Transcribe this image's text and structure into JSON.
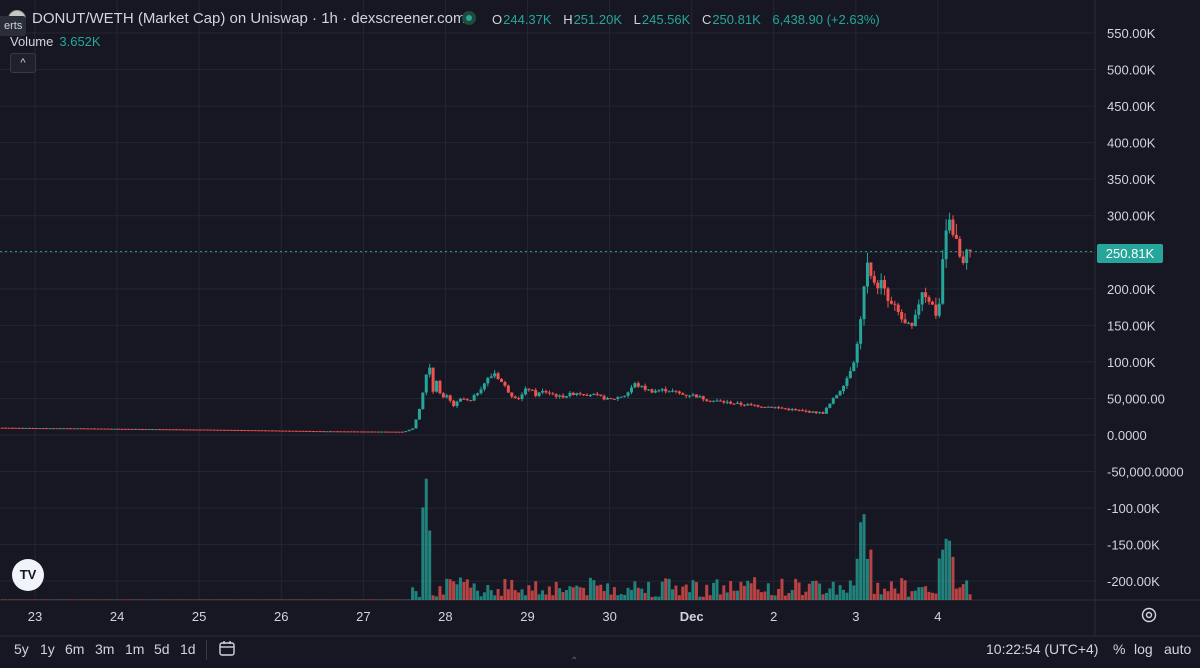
{
  "header": {
    "alerts_tab": "erts",
    "title": "DONUT/WETH (Market Cap) on Uniswap · 1h · dexscreener.com",
    "ohlc": [
      {
        "key": "O",
        "value": "244.37K"
      },
      {
        "key": "H",
        "value": "251.20K"
      },
      {
        "key": "L",
        "value": "245.56K"
      },
      {
        "key": "C",
        "value": "250.81K"
      }
    ],
    "change": "6,438.90 (+2.63%)",
    "volume_label": "Volume",
    "volume_value": "3.652K",
    "collapse_glyph": "^"
  },
  "price_tag": "250.81K",
  "tv_logo": "TV",
  "bottom": {
    "ranges": [
      "5y",
      "1y",
      "6m",
      "3m",
      "1m",
      "5d",
      "1d"
    ],
    "time": "10:22:54 (UTC+4)",
    "percent": "%",
    "log": "log",
    "auto": "auto"
  },
  "colors": {
    "background": "#161722",
    "up": "#26a69a",
    "down": "#ef5350",
    "grid": "#232632",
    "text": "#d1d4dc"
  },
  "chart_data": {
    "type": "candlestick",
    "title": "DONUT/WETH (Market Cap) on Uniswap · 1h · dexscreener.com",
    "y_axis": {
      "ticks": [
        "550.00K",
        "500.00K",
        "450.00K",
        "400.00K",
        "350.00K",
        "300.00K",
        "250.00K",
        "200.00K",
        "150.00K",
        "100.00K",
        "50,000.00",
        "0.0000",
        "-50,000.0000",
        "-100.00K",
        "-150.00K",
        "-200.00K"
      ],
      "tick_values": [
        550000,
        500000,
        450000,
        400000,
        350000,
        300000,
        250000,
        200000,
        150000,
        100000,
        50000,
        0,
        -50000,
        -100000,
        -150000,
        -200000
      ],
      "range": [
        -220000,
        580000
      ]
    },
    "x_axis": {
      "ticks": [
        "23",
        "24",
        "25",
        "26",
        "27",
        "28",
        "29",
        "30",
        "Dec",
        "2",
        "3",
        "4"
      ],
      "range_days": [
        22.6,
        35.9
      ]
    },
    "last_price": 250810,
    "grid": true,
    "series": [
      {
        "name": "Market Cap",
        "points": [
          [
            22.6,
            10000
          ],
          [
            23.0,
            9500
          ],
          [
            23.5,
            9200
          ],
          [
            24.0,
            8500
          ],
          [
            24.5,
            8000
          ],
          [
            25.0,
            7500
          ],
          [
            25.5,
            6800
          ],
          [
            26.0,
            6000
          ],
          [
            26.5,
            5200
          ],
          [
            27.0,
            4800
          ],
          [
            27.5,
            4500
          ],
          [
            27.6,
            9000
          ],
          [
            27.7,
            40000
          ],
          [
            27.75,
            75000
          ],
          [
            27.8,
            100000
          ],
          [
            27.85,
            60000
          ],
          [
            27.9,
            80000
          ],
          [
            27.95,
            45000
          ],
          [
            28.0,
            55000
          ],
          [
            28.1,
            40000
          ],
          [
            28.2,
            50000
          ],
          [
            28.3,
            45000
          ],
          [
            28.4,
            60000
          ],
          [
            28.5,
            75000
          ],
          [
            28.6,
            85000
          ],
          [
            28.7,
            70000
          ],
          [
            28.8,
            55000
          ],
          [
            28.9,
            50000
          ],
          [
            29.0,
            65000
          ],
          [
            29.1,
            55000
          ],
          [
            29.2,
            60000
          ],
          [
            29.4,
            52000
          ],
          [
            29.6,
            58000
          ],
          [
            29.8,
            55000
          ],
          [
            30.0,
            48000
          ],
          [
            30.2,
            55000
          ],
          [
            30.3,
            70000
          ],
          [
            30.5,
            60000
          ],
          [
            30.7,
            62000
          ],
          [
            30.9,
            55000
          ],
          [
            31.0,
            55000
          ],
          [
            31.2,
            48000
          ],
          [
            31.4,
            45000
          ],
          [
            31.6,
            42000
          ],
          [
            31.8,
            40000
          ],
          [
            32.0,
            38000
          ],
          [
            32.2,
            35000
          ],
          [
            32.4,
            32000
          ],
          [
            32.6,
            30000
          ],
          [
            32.7,
            45000
          ],
          [
            32.8,
            60000
          ],
          [
            32.9,
            80000
          ],
          [
            33.0,
            110000
          ],
          [
            33.05,
            150000
          ],
          [
            33.1,
            200000
          ],
          [
            33.15,
            240000
          ],
          [
            33.2,
            200000
          ],
          [
            33.3,
            210000
          ],
          [
            33.4,
            180000
          ],
          [
            33.5,
            170000
          ],
          [
            33.6,
            150000
          ],
          [
            33.7,
            145000
          ],
          [
            33.8,
            200000
          ],
          [
            33.9,
            185000
          ],
          [
            34.0,
            160000
          ],
          [
            34.05,
            220000
          ],
          [
            34.1,
            290000
          ],
          [
            34.15,
            300000
          ],
          [
            34.2,
            270000
          ],
          [
            34.25,
            250000
          ],
          [
            34.3,
            230000
          ],
          [
            34.35,
            245000
          ],
          [
            34.4,
            250810
          ]
        ]
      }
    ]
  }
}
